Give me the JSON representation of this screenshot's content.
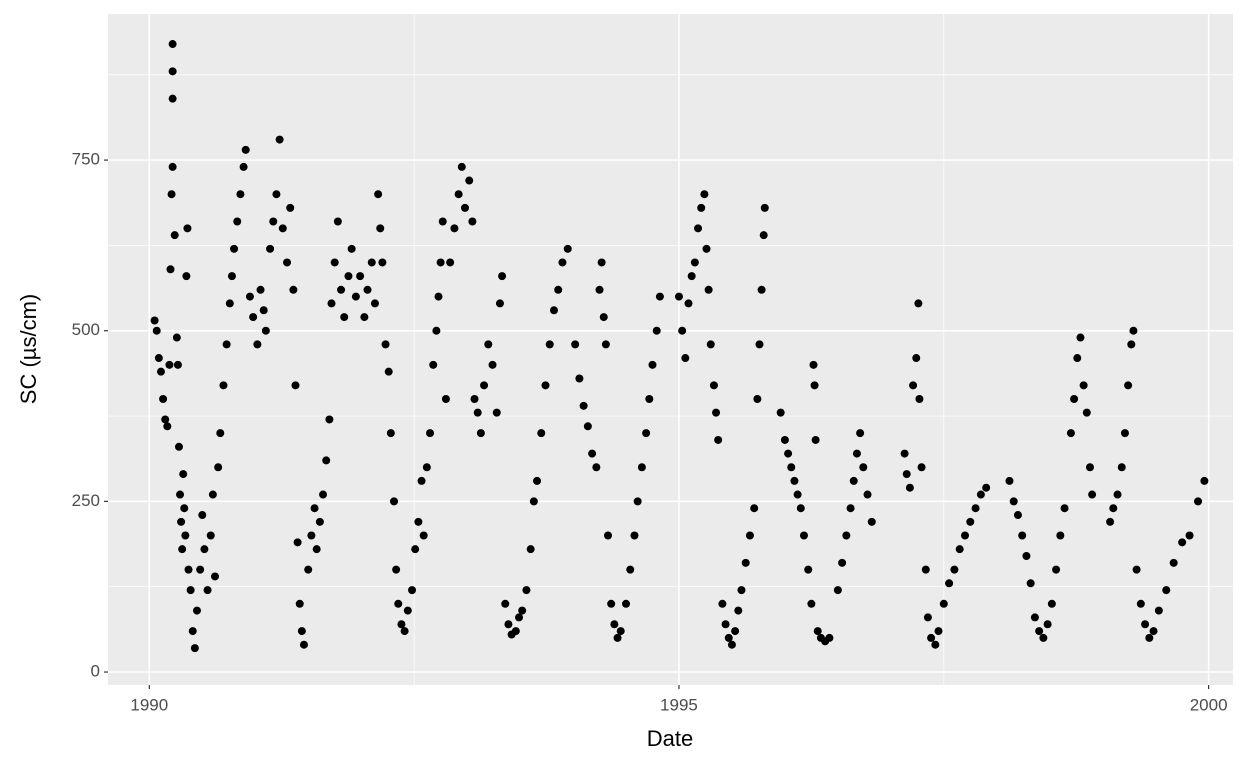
{
  "chart_data": {
    "type": "scatter",
    "x_label": "Date",
    "y_label": "SC (µs/cm)",
    "color": "#000000",
    "grid": true,
    "xlim": [
      1989.61,
      2000.23
    ],
    "ylim": [
      -19,
      964
    ],
    "xticks": [
      1990,
      1995,
      2000
    ],
    "yticks": [
      0,
      250,
      500,
      750
    ],
    "minor_xticks": [
      1992.5,
      1997.5
    ],
    "minor_yticks": [
      125,
      375,
      625,
      875
    ],
    "x": [
      1990.05,
      1990.07,
      1990.09,
      1990.11,
      1990.13,
      1990.15,
      1990.17,
      1990.19,
      1990.2,
      1990.21,
      1990.22,
      1990.22,
      1990.22,
      1990.22,
      1990.24,
      1990.26,
      1990.27,
      1990.28,
      1990.29,
      1990.3,
      1990.31,
      1990.32,
      1990.33,
      1990.34,
      1990.35,
      1990.36,
      1990.37,
      1990.39,
      1990.41,
      1990.43,
      1990.45,
      1990.48,
      1990.5,
      1990.52,
      1990.55,
      1990.58,
      1990.6,
      1990.62,
      1990.65,
      1990.67,
      1990.7,
      1990.73,
      1990.76,
      1990.78,
      1990.8,
      1990.83,
      1990.86,
      1990.89,
      1990.91,
      1990.95,
      1990.98,
      1991.02,
      1991.05,
      1991.08,
      1991.1,
      1991.14,
      1991.17,
      1991.2,
      1991.23,
      1991.26,
      1991.3,
      1991.33,
      1991.36,
      1991.38,
      1991.4,
      1991.42,
      1991.44,
      1991.46,
      1991.5,
      1991.53,
      1991.56,
      1991.58,
      1991.61,
      1991.64,
      1991.67,
      1991.7,
      1991.72,
      1991.75,
      1991.78,
      1991.81,
      1991.84,
      1991.88,
      1991.91,
      1991.95,
      1991.99,
      1992.03,
      1992.06,
      1992.1,
      1992.13,
      1992.16,
      1992.18,
      1992.2,
      1992.23,
      1992.26,
      1992.28,
      1992.31,
      1992.33,
      1992.35,
      1992.38,
      1992.41,
      1992.44,
      1992.48,
      1992.51,
      1992.54,
      1992.57,
      1992.59,
      1992.62,
      1992.65,
      1992.68,
      1992.71,
      1992.73,
      1992.75,
      1992.77,
      1992.8,
      1992.84,
      1992.88,
      1992.92,
      1992.95,
      1992.98,
      1993.02,
      1993.05,
      1993.07,
      1993.1,
      1993.13,
      1993.16,
      1993.2,
      1993.24,
      1993.28,
      1993.31,
      1993.33,
      1993.36,
      1993.39,
      1993.42,
      1993.46,
      1993.49,
      1993.52,
      1993.56,
      1993.6,
      1993.63,
      1993.66,
      1993.7,
      1993.74,
      1993.78,
      1993.82,
      1993.86,
      1993.9,
      1993.95,
      1994.02,
      1994.06,
      1994.1,
      1994.14,
      1994.18,
      1994.22,
      1994.25,
      1994.27,
      1994.29,
      1994.31,
      1994.33,
      1994.36,
      1994.39,
      1994.42,
      1994.45,
      1994.5,
      1994.54,
      1994.58,
      1994.61,
      1994.65,
      1994.69,
      1994.72,
      1994.75,
      1994.79,
      1994.82,
      1995.0,
      1995.03,
      1995.06,
      1995.09,
      1995.12,
      1995.15,
      1995.18,
      1995.21,
      1995.24,
      1995.26,
      1995.28,
      1995.3,
      1995.33,
      1995.35,
      1995.37,
      1995.41,
      1995.44,
      1995.47,
      1995.5,
      1995.53,
      1995.56,
      1995.59,
      1995.63,
      1995.67,
      1995.71,
      1995.74,
      1995.76,
      1995.78,
      1995.8,
      1995.81,
      1995.96,
      1996.0,
      1996.03,
      1996.06,
      1996.09,
      1996.12,
      1996.15,
      1996.18,
      1996.22,
      1996.25,
      1996.27,
      1996.28,
      1996.29,
      1996.31,
      1996.34,
      1996.38,
      1996.42,
      1996.5,
      1996.54,
      1996.58,
      1996.62,
      1996.65,
      1996.68,
      1996.71,
      1996.74,
      1996.78,
      1996.82,
      1997.13,
      1997.15,
      1997.18,
      1997.21,
      1997.24,
      1997.26,
      1997.27,
      1997.29,
      1997.33,
      1997.35,
      1997.38,
      1997.42,
      1997.45,
      1997.5,
      1997.55,
      1997.6,
      1997.65,
      1997.7,
      1997.75,
      1997.8,
      1997.85,
      1997.9,
      1998.12,
      1998.16,
      1998.2,
      1998.24,
      1998.28,
      1998.32,
      1998.36,
      1998.4,
      1998.44,
      1998.48,
      1998.52,
      1998.56,
      1998.6,
      1998.64,
      1998.7,
      1998.73,
      1998.76,
      1998.79,
      1998.82,
      1998.85,
      1998.88,
      1998.9,
      1999.07,
      1999.1,
      1999.14,
      1999.18,
      1999.21,
      1999.24,
      1999.27,
      1999.29,
      1999.32,
      1999.36,
      1999.4,
      1999.44,
      1999.48,
      1999.53,
      1999.6,
      1999.67,
      1999.75,
      1999.82,
      1999.9,
      1999.96
    ],
    "values": [
      515,
      500,
      460,
      440,
      400,
      370,
      360,
      450,
      590,
      700,
      740,
      840,
      880,
      920,
      640,
      490,
      450,
      330,
      260,
      220,
      180,
      290,
      240,
      200,
      580,
      650,
      150,
      120,
      60,
      35,
      90,
      150,
      230,
      180,
      120,
      200,
      260,
      140,
      300,
      350,
      420,
      480,
      540,
      580,
      620,
      660,
      700,
      740,
      765,
      550,
      520,
      480,
      560,
      530,
      500,
      620,
      660,
      700,
      780,
      650,
      600,
      680,
      560,
      420,
      190,
      100,
      60,
      40,
      150,
      200,
      240,
      180,
      220,
      260,
      310,
      370,
      540,
      600,
      660,
      560,
      520,
      580,
      620,
      550,
      580,
      520,
      560,
      600,
      540,
      700,
      650,
      600,
      480,
      440,
      350,
      250,
      150,
      100,
      70,
      60,
      90,
      120,
      180,
      220,
      280,
      200,
      300,
      350,
      450,
      500,
      550,
      600,
      660,
      400,
      600,
      650,
      700,
      740,
      680,
      720,
      660,
      400,
      380,
      350,
      420,
      480,
      450,
      380,
      540,
      580,
      100,
      70,
      55,
      60,
      80,
      90,
      120,
      180,
      250,
      280,
      350,
      420,
      480,
      530,
      560,
      600,
      620,
      480,
      430,
      390,
      360,
      320,
      300,
      560,
      600,
      520,
      480,
      200,
      100,
      70,
      50,
      60,
      100,
      150,
      200,
      250,
      300,
      350,
      400,
      450,
      500,
      550,
      550,
      500,
      460,
      540,
      580,
      600,
      650,
      680,
      700,
      620,
      560,
      480,
      420,
      380,
      340,
      100,
      70,
      50,
      40,
      60,
      90,
      120,
      160,
      200,
      240,
      400,
      480,
      560,
      640,
      680,
      380,
      340,
      320,
      300,
      280,
      260,
      240,
      200,
      150,
      100,
      450,
      420,
      340,
      60,
      50,
      45,
      50,
      120,
      160,
      200,
      240,
      280,
      320,
      350,
      300,
      260,
      220,
      320,
      290,
      270,
      420,
      460,
      540,
      400,
      300,
      150,
      80,
      50,
      40,
      60,
      100,
      130,
      150,
      180,
      200,
      220,
      240,
      260,
      270,
      280,
      250,
      230,
      200,
      170,
      130,
      80,
      60,
      50,
      70,
      100,
      150,
      200,
      240,
      350,
      400,
      460,
      490,
      420,
      380,
      300,
      260,
      220,
      240,
      260,
      300,
      350,
      420,
      480,
      500,
      150,
      100,
      70,
      50,
      60,
      90,
      120,
      160,
      190,
      200,
      250,
      280
    ]
  }
}
